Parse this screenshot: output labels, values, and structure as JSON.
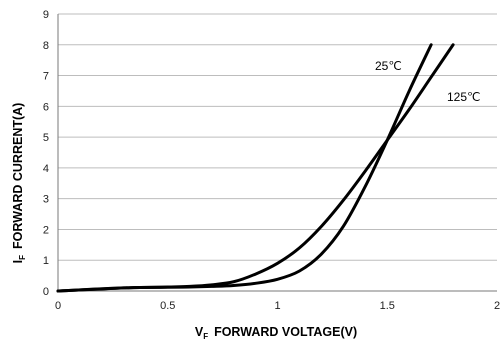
{
  "chart_data": {
    "type": "line",
    "xlabel": {
      "main": "V",
      "sub": "F",
      "rest": "FORWARD VOLTAGE(V)"
    },
    "ylabel": {
      "main": "I",
      "sub": "F",
      "rest": "FORWARD CURRENT(A)"
    },
    "xlim": [
      0,
      2
    ],
    "ylim": [
      0,
      9
    ],
    "x_ticks": [
      "0",
      "0.5",
      "1",
      "1.5",
      "2"
    ],
    "y_ticks": [
      "0",
      "1",
      "2",
      "3",
      "4",
      "5",
      "6",
      "7",
      "8",
      "9"
    ],
    "grid": "horizontal",
    "line_color": "#000000",
    "grid_color": "#bdbdbd",
    "series": [
      {
        "name": "25℃",
        "x": [
          0,
          0.3,
          0.5,
          0.6,
          0.7,
          0.8,
          0.9,
          1.0,
          1.1,
          1.2,
          1.3,
          1.4,
          1.5,
          1.6,
          1.7
        ],
        "y": [
          0,
          0.1,
          0.12,
          0.13,
          0.15,
          0.18,
          0.25,
          0.38,
          0.65,
          1.2,
          2.1,
          3.4,
          4.9,
          6.5,
          8.0
        ]
      },
      {
        "name": "125℃",
        "x": [
          0,
          0.3,
          0.5,
          0.6,
          0.7,
          0.8,
          0.9,
          1.0,
          1.1,
          1.2,
          1.3,
          1.4,
          1.5,
          1.6,
          1.7,
          1.8
        ],
        "y": [
          0,
          0.1,
          0.13,
          0.15,
          0.2,
          0.3,
          0.55,
          0.9,
          1.4,
          2.1,
          2.95,
          3.9,
          4.9,
          5.9,
          6.95,
          8.0
        ]
      }
    ],
    "annotations": [
      {
        "text": "25℃",
        "series": "25℃"
      },
      {
        "text": "125℃",
        "series": "125℃"
      }
    ]
  }
}
